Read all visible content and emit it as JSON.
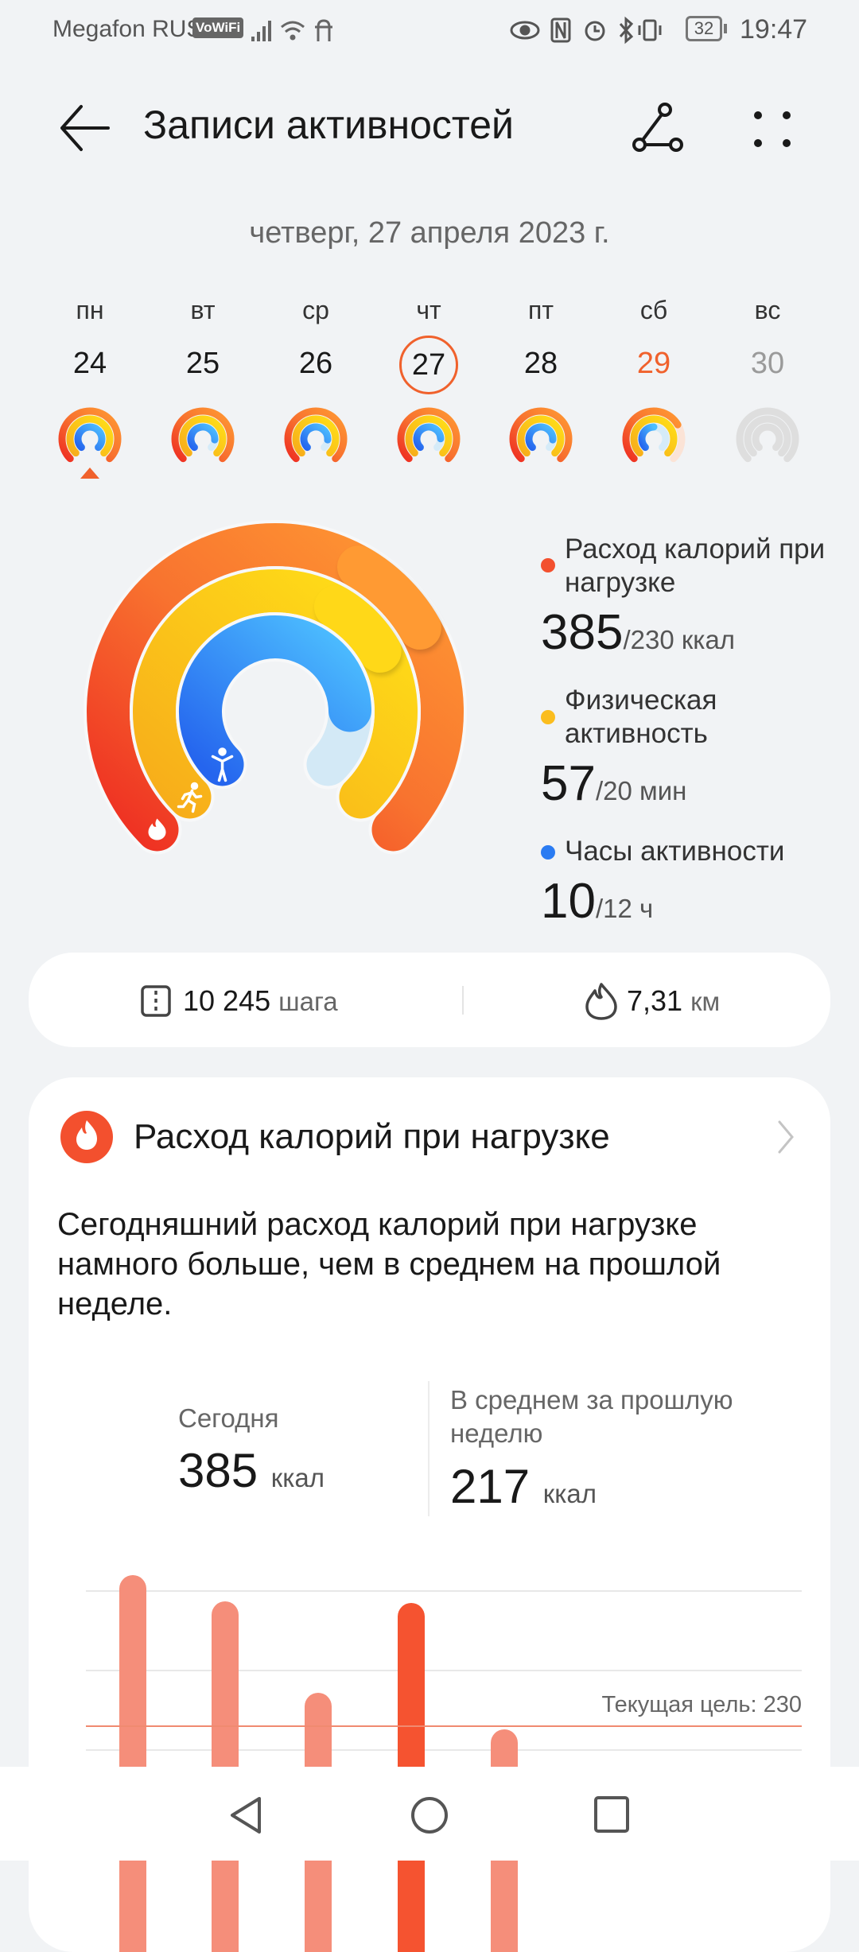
{
  "status_bar": {
    "carrier": "Megafon RUS",
    "vowifi": "VoWiFi",
    "battery": "32",
    "time": "19:47"
  },
  "header": {
    "title": "Записи активностей",
    "back_icon": "arrow-left-icon",
    "route_icon": "route-icon",
    "more_icon": "dots-grid-icon"
  },
  "date": "четверг, 27 апреля 2023 г.",
  "week": [
    {
      "weekday": "пн",
      "day": "24",
      "rings": [
        1,
        1,
        1
      ],
      "marker": true
    },
    {
      "weekday": "вт",
      "day": "25",
      "rings": [
        1,
        1,
        0.85
      ]
    },
    {
      "weekday": "ср",
      "day": "26",
      "rings": [
        1,
        1,
        0.85
      ]
    },
    {
      "weekday": "чт",
      "day": "27",
      "rings": [
        1,
        1,
        0.83
      ],
      "selected": true
    },
    {
      "weekday": "пт",
      "day": "28",
      "rings": [
        1,
        1,
        0.85
      ]
    },
    {
      "weekday": "сб",
      "day": "29",
      "rings": [
        0.72,
        1,
        0.5
      ],
      "weekend": true
    },
    {
      "weekday": "вс",
      "day": "30",
      "rings": [
        0,
        0,
        0
      ],
      "future": true
    }
  ],
  "colors": {
    "calories": "#f3502e",
    "exercise": "#fbbd1e",
    "hours": "#2a7bf2",
    "accent": "#f0612c",
    "weekend": "#f0612c",
    "bar": "#f58e7a",
    "bar_today": "#f55330"
  },
  "summary": {
    "calories": {
      "label": "Расход калорий при нагрузке",
      "value": "385",
      "goal": "/230 ккал",
      "fraction": 1.67
    },
    "exercise": {
      "label": "Физическая активность",
      "value": "57",
      "goal": "/20 мин",
      "fraction": 2.85
    },
    "hours": {
      "label": "Часы активности",
      "value": "10",
      "goal": "/12 ч",
      "fraction": 0.83
    }
  },
  "steps_card": {
    "steps": "10 245",
    "steps_unit": "шага",
    "distance": "7,31",
    "distance_unit": "км"
  },
  "calorie_card": {
    "title": "Расход калорий при нагрузке",
    "description": "Сегодняшний расход калорий при нагрузке намного больше, чем в среднем на прошлой неделе.",
    "today_label": "Сегодня",
    "today_value": "385",
    "today_unit": "ккал",
    "avg_label": "В среднем за прошлую неделю",
    "avg_value": "217",
    "avg_unit": "ккал"
  },
  "chart_data": {
    "type": "bar",
    "values": [
      420,
      387,
      272,
      385,
      226
    ],
    "highlight_index": 3,
    "goal": 230,
    "goal_label": "Текущая цель: 230",
    "ylim": [
      0,
      400
    ],
    "grid": true
  }
}
